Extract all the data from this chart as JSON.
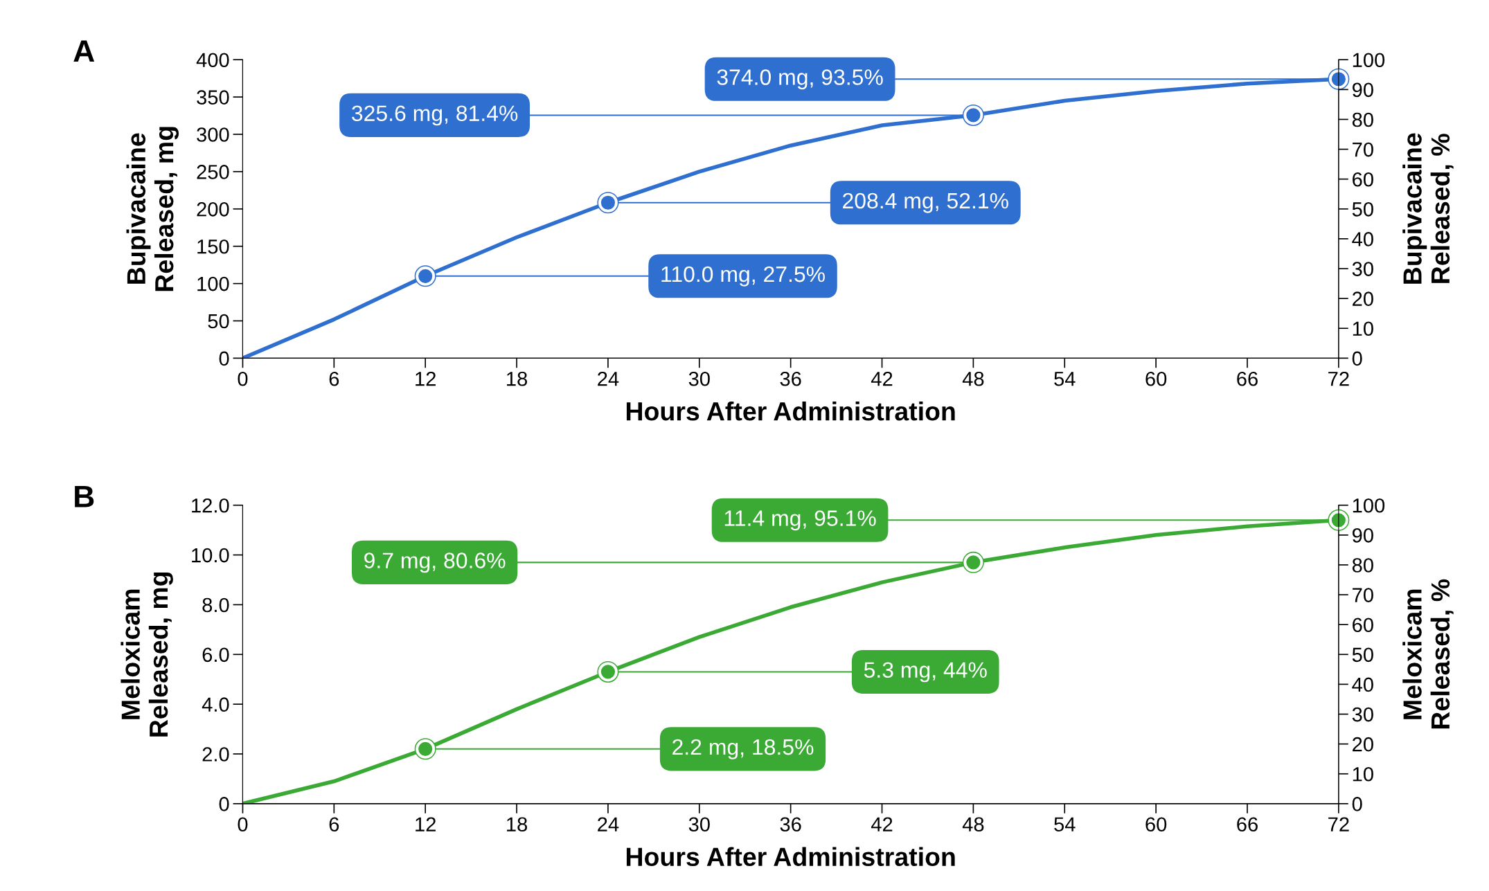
{
  "chart_data": [
    {
      "type": "line",
      "title": "A",
      "xlabel": "Hours After Administration",
      "ylabel": "Bupivacaine\nReleased, mg",
      "y2label": "Bupivacaine\nReleased, %",
      "xlim": [
        0,
        72
      ],
      "xticks": [
        0,
        6,
        12,
        18,
        24,
        30,
        36,
        42,
        48,
        54,
        60,
        66,
        72
      ],
      "ylim": [
        0,
        400
      ],
      "yticks": [
        0,
        50,
        100,
        150,
        200,
        250,
        300,
        350,
        400
      ],
      "y2lim": [
        0,
        100
      ],
      "y2ticks": [
        0,
        10,
        20,
        30,
        40,
        50,
        60,
        70,
        80,
        90,
        100
      ],
      "grid": false,
      "series": [
        {
          "color": "#2f6fd0",
          "line_style": "solid",
          "x": [
            0,
            6,
            12,
            18,
            24,
            30,
            36,
            42,
            48,
            54,
            60,
            66,
            72
          ],
          "values": [
            0,
            52,
            110,
            162,
            208.4,
            250,
            285,
            312,
            325.6,
            345,
            358,
            368,
            374
          ]
        },
        {
          "type": "scatter",
          "color": "#2f6fd0",
          "marker": "circle",
          "x": [
            12,
            24,
            48,
            72
          ],
          "values": [
            110.0,
            208.4,
            325.6,
            374.0
          ]
        }
      ],
      "annotations": [
        {
          "text": "110.0 mg, 27.5%",
          "x": 12,
          "y": 110.0
        },
        {
          "text": "208.4 mg, 52.1%",
          "x": 24,
          "y": 208.4
        },
        {
          "text": "325.6 mg, 81.4%",
          "x": 48,
          "y": 325.6
        },
        {
          "text": "374.0 mg, 93.5%",
          "x": 72,
          "y": 374.0
        }
      ]
    },
    {
      "type": "line",
      "title": "B",
      "xlabel": "Hours After Administration",
      "ylabel": "Meloxicam\nReleased, mg",
      "y2label": "Meloxicam\nReleased, %",
      "xlim": [
        0,
        72
      ],
      "xticks": [
        0,
        6,
        12,
        18,
        24,
        30,
        36,
        42,
        48,
        54,
        60,
        66,
        72
      ],
      "ylim": [
        0,
        12
      ],
      "yticks": [
        0,
        {
          "value": 2,
          "label": "2.0"
        },
        {
          "value": 4,
          "label": "4.0"
        },
        {
          "value": 6,
          "label": "6.0"
        },
        {
          "value": 8,
          "label": "8.0"
        },
        {
          "value": 10,
          "label": "10.0"
        },
        {
          "value": 12,
          "label": "12.0"
        }
      ],
      "y2lim": [
        0,
        100
      ],
      "y2ticks": [
        0,
        10,
        20,
        30,
        40,
        50,
        60,
        70,
        80,
        90,
        100
      ],
      "grid": false,
      "series": [
        {
          "color": "#3aaa35",
          "line_style": "solid",
          "x": [
            0,
            6,
            12,
            18,
            24,
            30,
            36,
            42,
            48,
            54,
            60,
            66,
            72
          ],
          "values": [
            0,
            0.9,
            2.2,
            3.8,
            5.3,
            6.7,
            7.9,
            8.9,
            9.7,
            10.3,
            10.8,
            11.15,
            11.4
          ]
        },
        {
          "type": "scatter",
          "color": "#3aaa35",
          "marker": "circle",
          "x": [
            12,
            24,
            48,
            72
          ],
          "values": [
            2.2,
            5.3,
            9.7,
            11.4
          ]
        }
      ],
      "annotations": [
        {
          "text": "2.2 mg, 18.5%",
          "x": 12,
          "y": 2.2
        },
        {
          "text": "5.3 mg, 44%",
          "x": 24,
          "y": 5.3
        },
        {
          "text": "9.7 mg, 80.6%",
          "x": 48,
          "y": 9.7
        },
        {
          "text": "11.4 mg, 95.1%",
          "x": 72,
          "y": 11.4
        }
      ]
    }
  ]
}
